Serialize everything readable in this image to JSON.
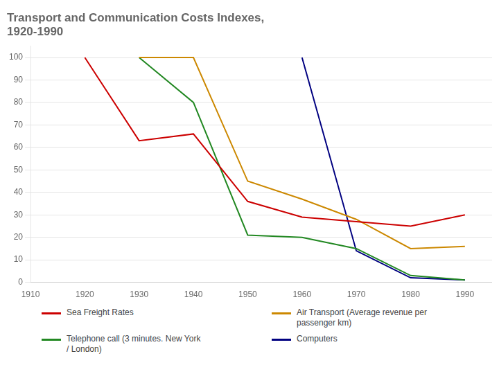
{
  "chart_data": {
    "type": "line",
    "title": "Transport and Communication Costs Indexes,\n1920-1990",
    "xlim": [
      1910,
      1995
    ],
    "xticks": [
      1910,
      1920,
      1930,
      1940,
      1950,
      1960,
      1970,
      1980,
      1990
    ],
    "ylim": [
      0,
      105
    ],
    "yticks": [
      0,
      10,
      20,
      30,
      40,
      50,
      60,
      70,
      80,
      90,
      100
    ],
    "grid": "y",
    "legend": "lower left",
    "series": [
      {
        "name": "Sea Freight Rates",
        "color": "#cc0000",
        "x": [
          1920,
          1930,
          1940,
          1950,
          1960,
          1970,
          1980,
          1990
        ],
        "values": [
          100,
          63,
          66,
          36,
          29,
          27,
          25,
          30
        ]
      },
      {
        "name": "Air Transport (Average revenue per\npassenger km)",
        "color": "#cc8800",
        "x": [
          1930,
          1940,
          1950,
          1960,
          1970,
          1980,
          1990
        ],
        "values": [
          100,
          100,
          45,
          37,
          28,
          15,
          16
        ]
      },
      {
        "name": "Telephone call (3 minutes. New York\n/ London)",
        "color": "#228822",
        "x": [
          1930,
          1940,
          1950,
          1960,
          1970,
          1980,
          1990
        ],
        "values": [
          100,
          80,
          21,
          20,
          15,
          3,
          1
        ]
      },
      {
        "name": "Computers",
        "color": "#000080",
        "x": [
          1960,
          1970,
          1980,
          1990
        ],
        "values": [
          100,
          14,
          2,
          1
        ]
      }
    ]
  }
}
